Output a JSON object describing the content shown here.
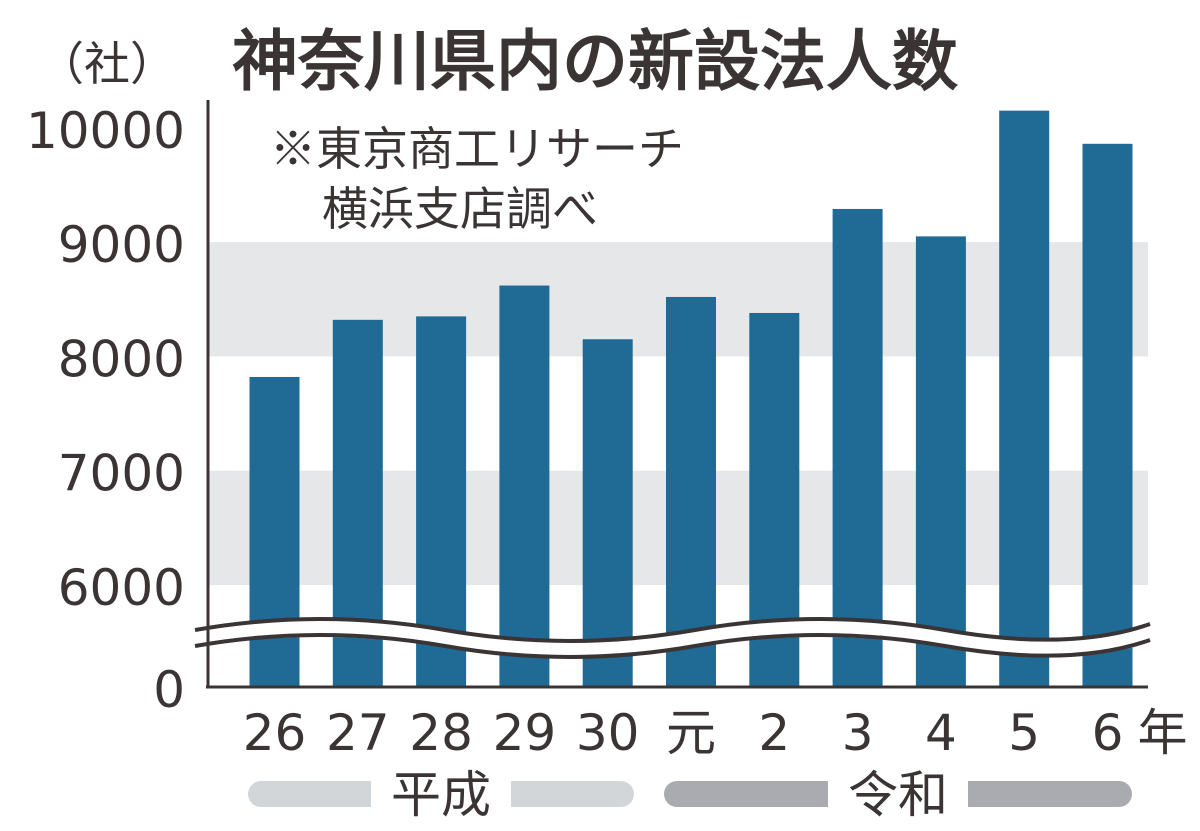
{
  "chart_data": {
    "type": "bar",
    "title": "神奈川県内の新設法人数",
    "unit_label": "（社）",
    "source_note": [
      "※東京商工リサーチ",
      "横浜支店調べ"
    ],
    "categories": [
      "26",
      "27",
      "28",
      "29",
      "30",
      "元",
      "2",
      "3",
      "4",
      "5",
      "6"
    ],
    "x_suffix": "年",
    "values": [
      7820,
      8320,
      8350,
      8620,
      8150,
      8520,
      8380,
      9290,
      9050,
      10150,
      9860
    ],
    "yticks": [
      "0",
      "6000",
      "7000",
      "8000",
      "9000",
      "10000"
    ],
    "ylim": [
      6000,
      10200
    ],
    "axis_break": "between 0 and 6000",
    "eras": [
      {
        "name": "平成",
        "categories": [
          "26",
          "27",
          "28",
          "29",
          "30"
        ]
      },
      {
        "name": "令和",
        "categories": [
          "元",
          "2",
          "3",
          "4",
          "5",
          "6"
        ]
      }
    ],
    "colors": {
      "bar": "#1f6b96",
      "band": "#e6e7e9",
      "text": "#3a3534",
      "heisei_bar": "#d3d6d9",
      "reiwa_bar": "#a9abb0"
    }
  }
}
